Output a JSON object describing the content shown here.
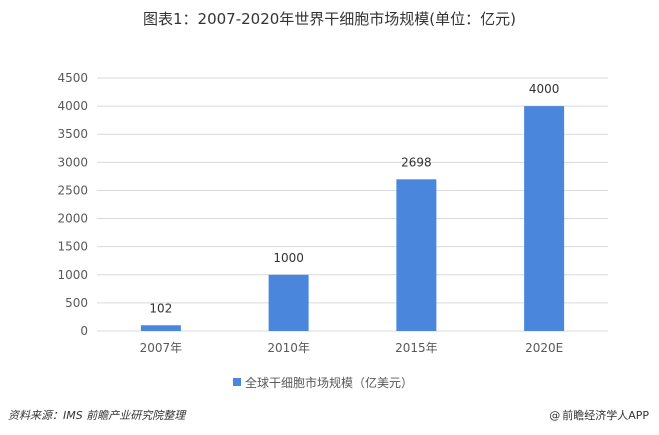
{
  "title": "图表1：2007-2020年世界干细胞市场规模(单位：亿元)",
  "source": "资料来源：IMS 前瞻产业研究院整理",
  "brand": "前瞻经济学人APP",
  "colors": {
    "bar": "#4a87dc",
    "grid": "#d9d9d9",
    "axis_text": "#595959"
  },
  "chart_data": {
    "type": "bar",
    "title": "图表1：2007-2020年世界干细胞市场规模(单位：亿元)",
    "categories": [
      "2007年",
      "2010年",
      "2015年",
      "2020E"
    ],
    "series": [
      {
        "name": "全球干细胞市场规模（亿美元）",
        "values": [
          102,
          1000,
          2698,
          4000
        ]
      }
    ],
    "ylim": [
      0,
      4500
    ],
    "yticks": [
      0,
      500,
      1000,
      1500,
      2000,
      2500,
      3000,
      3500,
      4000,
      4500
    ],
    "grid": true,
    "legend": "bottom",
    "data_labels": true
  }
}
